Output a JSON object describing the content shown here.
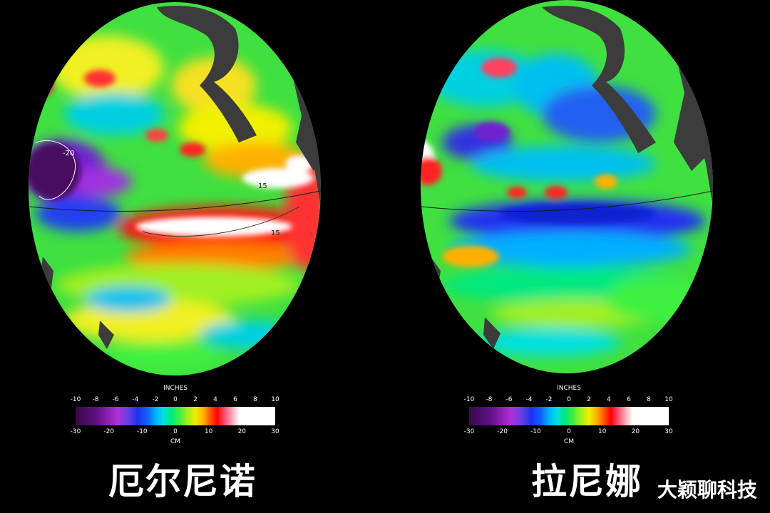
{
  "panels": [
    {
      "title": "厄尔尼诺",
      "colorbar": {
        "top_unit": "INCHES",
        "top_ticks": [
          "-10",
          "-8",
          "-6",
          "-4",
          "-2",
          "0",
          "2",
          "4",
          "6",
          "8",
          "10"
        ],
        "bottom_ticks": [
          "-30",
          "-20",
          "-10",
          "0",
          "10",
          "20",
          "30"
        ],
        "bottom_unit": "CM"
      },
      "contour_labels": [
        "-20",
        "15",
        "15"
      ]
    },
    {
      "title": "拉尼娜",
      "colorbar": {
        "top_unit": "INCHES",
        "top_ticks": [
          "-10",
          "-8",
          "-6",
          "-4",
          "-2",
          "0",
          "2",
          "4",
          "6",
          "8",
          "10"
        ],
        "bottom_ticks": [
          "-30",
          "-20",
          "-10",
          "0",
          "10",
          "20",
          "30"
        ],
        "bottom_unit": "CM"
      }
    }
  ],
  "watermark": "大颖聊科技",
  "colors": {
    "background": "#000000",
    "land": "#3c3c3c",
    "ocean_base": "#3fe040"
  }
}
